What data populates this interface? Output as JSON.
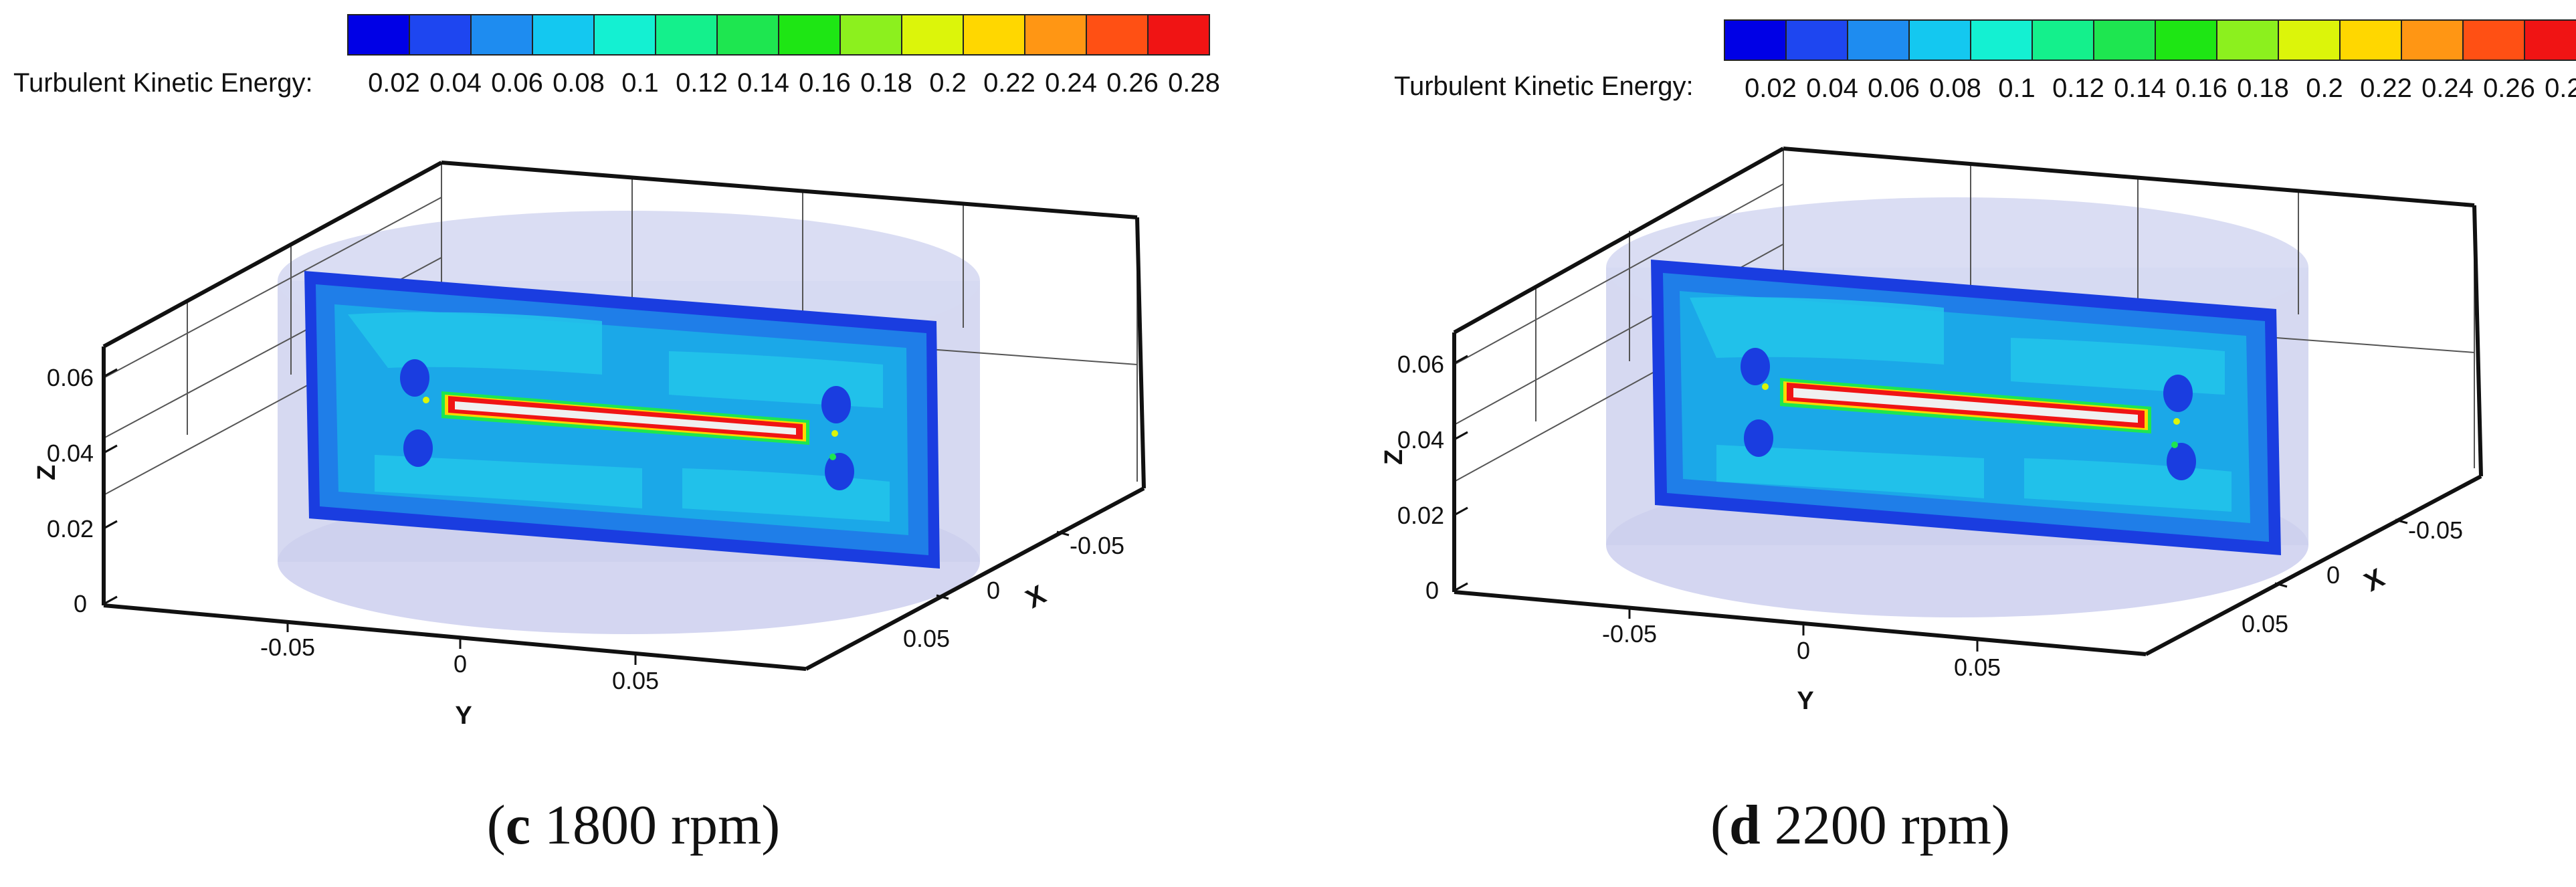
{
  "colorbar": {
    "label": "Turbulent Kinetic Energy:",
    "ticks": [
      "0.02",
      "0.04",
      "0.06",
      "0.08",
      "0.1",
      "0.12",
      "0.14",
      "0.16",
      "0.18",
      "0.2",
      "0.22",
      "0.24",
      "0.26",
      "0.28"
    ],
    "colors": [
      "#0000e6",
      "#1e46f0",
      "#1e8cf0",
      "#14c8f0",
      "#14f0d2",
      "#14f08c",
      "#1ee650",
      "#1ee614",
      "#8cf01e",
      "#dcf50a",
      "#ffd700",
      "#ff9614",
      "#ff5014",
      "#f01414"
    ]
  },
  "axes": {
    "z_label": "Z",
    "y_label": "Y",
    "x_label": "X",
    "z_ticks": [
      "0",
      "0.02",
      "0.04",
      "0.06"
    ],
    "y_ticks": [
      "-0.05",
      "0",
      "0.05"
    ],
    "x_ticks": [
      "-0.05",
      "0",
      "0.05"
    ]
  },
  "panels": [
    {
      "letter": "c",
      "caption_rest": " 1800 rpm"
    },
    {
      "letter": "d",
      "caption_rest": " 2200 rpm"
    }
  ]
}
